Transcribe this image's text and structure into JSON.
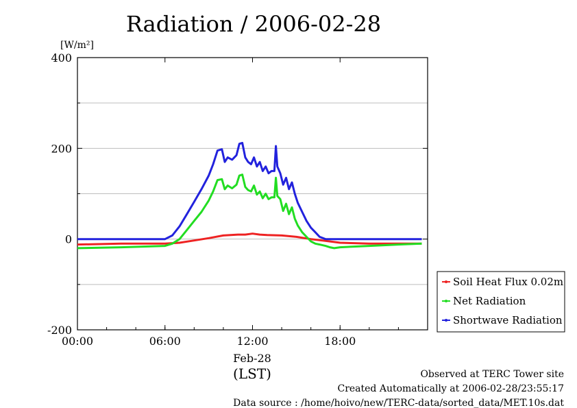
{
  "chart_data": {
    "type": "line",
    "title": "Radiation / 2006-02-28",
    "ylabel_unit": "[W/m²]",
    "xlabel_date": "Feb-28",
    "xlabel_unit": "(LST)",
    "xlim": [
      0,
      24
    ],
    "ylim": [
      -200,
      400
    ],
    "x_ticks": [
      {
        "value": 0,
        "label": "00:00"
      },
      {
        "value": 6,
        "label": "06:00"
      },
      {
        "value": 12,
        "label": "12:00"
      },
      {
        "value": 18,
        "label": "18:00"
      }
    ],
    "y_ticks": [
      {
        "value": -200,
        "label": "-200"
      },
      {
        "value": 0,
        "label": "0"
      },
      {
        "value": 200,
        "label": "200"
      },
      {
        "value": 400,
        "label": "400"
      }
    ],
    "y_grid": [
      -100,
      100,
      300
    ],
    "grid": true,
    "legend_position": "bottom-right, outside",
    "series": [
      {
        "name": "Shortwave Radiation",
        "color": "#2222dd",
        "x": [
          0,
          6.0,
          6.5,
          7.0,
          7.5,
          8.0,
          8.5,
          9.0,
          9.3,
          9.6,
          9.9,
          10.1,
          10.3,
          10.6,
          10.9,
          11.1,
          11.3,
          11.5,
          11.7,
          11.9,
          12.1,
          12.3,
          12.5,
          12.7,
          12.9,
          13.1,
          13.3,
          13.5,
          13.6,
          13.7,
          13.9,
          14.1,
          14.3,
          14.5,
          14.7,
          14.9,
          15.1,
          15.4,
          15.7,
          16.0,
          16.3,
          16.6,
          17.0,
          17.3,
          17.6,
          18.0,
          20,
          22,
          23.6
        ],
        "y": [
          0,
          0,
          8,
          28,
          55,
          82,
          110,
          140,
          165,
          195,
          198,
          170,
          180,
          175,
          185,
          210,
          212,
          180,
          170,
          165,
          180,
          160,
          170,
          150,
          160,
          145,
          150,
          150,
          205,
          160,
          145,
          120,
          135,
          110,
          125,
          100,
          80,
          60,
          40,
          25,
          15,
          5,
          0,
          0,
          0,
          0,
          0,
          0,
          0
        ]
      },
      {
        "name": "Net Radiation",
        "color": "#22dd22",
        "x": [
          0,
          3,
          6.0,
          6.5,
          7.0,
          7.5,
          8.0,
          8.5,
          9.0,
          9.3,
          9.6,
          9.9,
          10.1,
          10.3,
          10.6,
          10.9,
          11.1,
          11.3,
          11.5,
          11.7,
          11.9,
          12.1,
          12.3,
          12.5,
          12.7,
          12.9,
          13.1,
          13.3,
          13.5,
          13.6,
          13.7,
          13.9,
          14.1,
          14.3,
          14.5,
          14.7,
          14.9,
          15.1,
          15.4,
          15.7,
          16.0,
          16.3,
          16.6,
          17.0,
          17.3,
          17.6,
          18.0,
          20,
          22,
          23.6
        ],
        "y": [
          -20,
          -18,
          -15,
          -10,
          0,
          20,
          40,
          60,
          85,
          105,
          130,
          132,
          110,
          118,
          112,
          120,
          140,
          142,
          115,
          108,
          105,
          118,
          98,
          105,
          90,
          100,
          88,
          92,
          92,
          135,
          95,
          88,
          62,
          78,
          55,
          70,
          45,
          30,
          15,
          5,
          -5,
          -10,
          -12,
          -15,
          -18,
          -20,
          -18,
          -15,
          -12,
          -10
        ]
      },
      {
        "name": "Soil Heat Flux 0.02m",
        "color": "#ee2222",
        "x": [
          0,
          3,
          6.0,
          7.0,
          8.0,
          9.0,
          10.0,
          11.0,
          11.5,
          12.0,
          12.5,
          13.0,
          14.0,
          15.0,
          16.0,
          17.0,
          18.0,
          20,
          22,
          23.6
        ],
        "y": [
          -12,
          -10,
          -10,
          -8,
          -3,
          2,
          8,
          10,
          10,
          12,
          10,
          9,
          8,
          5,
          0,
          -4,
          -8,
          -10,
          -10,
          -10
        ]
      }
    ],
    "legend": [
      "Soil Heat Flux 0.02m",
      "Net Radiation",
      "Shortwave Radiation"
    ],
    "footer": {
      "line1": "Observed at TERC Tower site",
      "line2": "Created Automatically at 2006-02-28/23:55:17",
      "line3": "Data source : /home/hoivo/new/TERC-data/sorted_data/MET.10s.dat"
    }
  }
}
